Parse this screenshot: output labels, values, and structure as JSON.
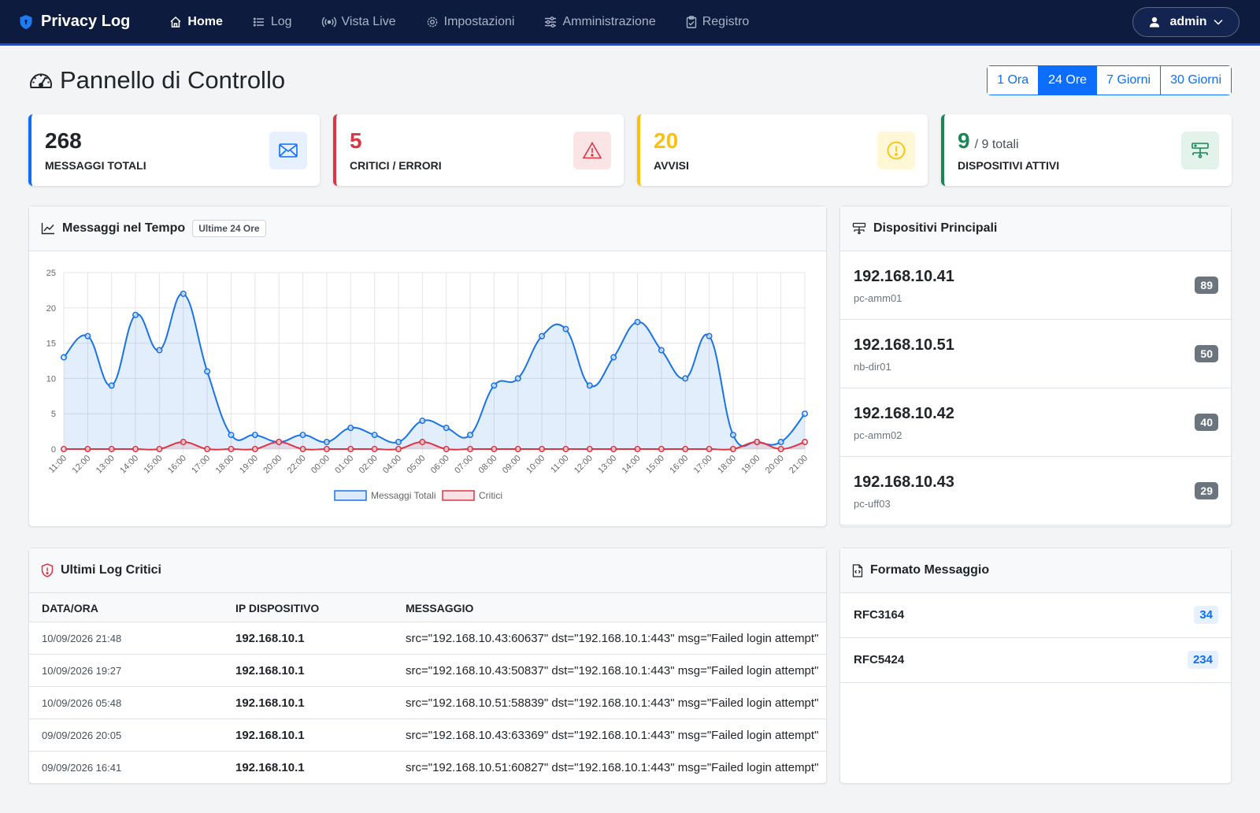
{
  "nav": {
    "brand": "Privacy Log",
    "items": [
      {
        "label": "Home",
        "icon": "home-icon",
        "active": true
      },
      {
        "label": "Log",
        "icon": "list-icon"
      },
      {
        "label": "Vista Live",
        "icon": "broadcast-icon"
      },
      {
        "label": "Impostazioni",
        "icon": "gear-icon"
      },
      {
        "label": "Amministrazione",
        "icon": "sliders-icon"
      },
      {
        "label": "Registro",
        "icon": "clipboard-icon"
      }
    ],
    "user": "admin"
  },
  "header": {
    "title": "Pannello di Controllo",
    "ranges": [
      "1 Ora",
      "24 Ore",
      "7 Giorni",
      "30 Giorni"
    ],
    "active_range": "24 Ore"
  },
  "stats": {
    "total": {
      "value": "268",
      "label": "MESSAGGI TOTALI",
      "color": "#0d6efd"
    },
    "critical": {
      "value": "5",
      "label": "CRITICI / ERRORI",
      "color": "#dc3545"
    },
    "warnings": {
      "value": "20",
      "label": "AVVISI",
      "color": "#ffc107"
    },
    "devices": {
      "value": "9",
      "sub": "/ 9 totali",
      "label": "DISPOSITIVI ATTIVI",
      "color": "#198754"
    }
  },
  "chart_panel": {
    "title": "Messaggi nel Tempo",
    "badge": "Ultime 24 Ore"
  },
  "chart_data": {
    "type": "line",
    "categories": [
      "11:00",
      "12:00",
      "13:00",
      "14:00",
      "15:00",
      "16:00",
      "17:00",
      "18:00",
      "19:00",
      "20:00",
      "22:00",
      "00:00",
      "01:00",
      "02:00",
      "04:00",
      "05:00",
      "06:00",
      "07:00",
      "08:00",
      "09:00",
      "10:00",
      "11:00",
      "12:00",
      "13:00",
      "14:00",
      "15:00",
      "16:00",
      "17:00",
      "18:00",
      "19:00",
      "20:00",
      "21:00"
    ],
    "series": [
      {
        "name": "Messaggi Totali",
        "color": "#1a73e8",
        "values": [
          13,
          16,
          9,
          19,
          14,
          22,
          11,
          2,
          2,
          1,
          2,
          1,
          3,
          2,
          1,
          4,
          3,
          2,
          9,
          10,
          16,
          17,
          9,
          13,
          18,
          14,
          10,
          16,
          2,
          1,
          1,
          5
        ]
      },
      {
        "name": "Critici",
        "color": "#dc3545",
        "values": [
          0,
          0,
          0,
          0,
          0,
          1,
          0,
          0,
          0,
          1,
          0,
          0,
          0,
          0,
          0,
          1,
          0,
          0,
          0,
          0,
          0,
          0,
          0,
          0,
          0,
          0,
          0,
          0,
          0,
          1,
          0,
          1
        ]
      }
    ],
    "yticks": [
      0,
      5,
      10,
      15,
      20,
      25
    ],
    "ylim": [
      0,
      25
    ],
    "grid": true,
    "legend": "bottom"
  },
  "devices_panel": {
    "title": "Dispositivi Principali",
    "items": [
      {
        "ip": "192.168.10.41",
        "host": "pc-amm01",
        "count": "89"
      },
      {
        "ip": "192.168.10.51",
        "host": "nb-dir01",
        "count": "50"
      },
      {
        "ip": "192.168.10.42",
        "host": "pc-amm02",
        "count": "40"
      },
      {
        "ip": "192.168.10.43",
        "host": "pc-uff03",
        "count": "29"
      }
    ]
  },
  "logs_panel": {
    "title": "Ultimi Log Critici",
    "columns": [
      "DATA/ORA",
      "IP DISPOSITIVO",
      "MESSAGGIO"
    ],
    "rows": [
      {
        "date": "10/09/2026 21:48",
        "ip": "192.168.10.1",
        "msg": "src=\"192.168.10.43:60637\" dst=\"192.168.10.1:443\" msg=\"Failed login attempt\""
      },
      {
        "date": "10/09/2026 19:27",
        "ip": "192.168.10.1",
        "msg": "src=\"192.168.10.43:50837\" dst=\"192.168.10.1:443\" msg=\"Failed login attempt\""
      },
      {
        "date": "10/09/2026 05:48",
        "ip": "192.168.10.1",
        "msg": "src=\"192.168.10.51:58839\" dst=\"192.168.10.1:443\" msg=\"Failed login attempt\""
      },
      {
        "date": "09/09/2026 20:05",
        "ip": "192.168.10.1",
        "msg": "src=\"192.168.10.43:63369\" dst=\"192.168.10.1:443\" msg=\"Failed login attempt\""
      },
      {
        "date": "09/09/2026 16:41",
        "ip": "192.168.10.1",
        "msg": "src=\"192.168.10.51:60827\" dst=\"192.168.10.1:443\" msg=\"Failed login attempt\""
      }
    ]
  },
  "format_panel": {
    "title": "Formato Messaggio",
    "items": [
      {
        "name": "RFC3164",
        "count": "34"
      },
      {
        "name": "RFC5424",
        "count": "234"
      }
    ]
  }
}
